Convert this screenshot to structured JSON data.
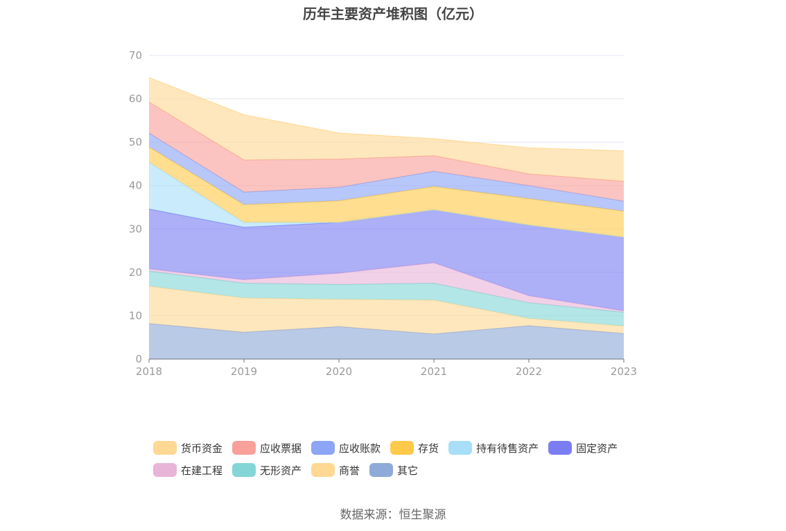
{
  "title": "历年主要资产堆积图（亿元）",
  "source": "数据来源：恒生聚源",
  "chart_data": {
    "type": "area",
    "stacked": true,
    "title": "历年主要资产堆积图（亿元）",
    "x": [
      "2018",
      "2019",
      "2020",
      "2021",
      "2022",
      "2023"
    ],
    "ylim": [
      0,
      70
    ],
    "yticks": [
      0,
      10,
      20,
      30,
      40,
      50,
      60,
      70
    ],
    "grid": true,
    "legend_position": "bottom",
    "series": [
      {
        "name": "其它",
        "color": "#8eaad8",
        "values": [
          8.2,
          6.2,
          7.5,
          5.8,
          7.7,
          5.9
        ]
      },
      {
        "name": "商誉",
        "color": "#ffd894",
        "values": [
          8.6,
          7.9,
          6.3,
          7.8,
          1.7,
          1.7
        ]
      },
      {
        "name": "无形资产",
        "color": "#84d6d6",
        "values": [
          3.5,
          3.4,
          3.4,
          3.9,
          3.6,
          3.2
        ]
      },
      {
        "name": "在建工程",
        "color": "#e8b4d8",
        "values": [
          0.5,
          0.8,
          2.6,
          4.7,
          1.6,
          0.3
        ]
      },
      {
        "name": "固定资产",
        "color": "#7b7ef2",
        "values": [
          13.8,
          12.1,
          11.7,
          12.2,
          16.3,
          17.0
        ]
      },
      {
        "name": "持有待售资产",
        "color": "#a8def8",
        "values": [
          10.8,
          1.1,
          0.0,
          0.0,
          0.0,
          0.0
        ]
      },
      {
        "name": "存货",
        "color": "#ffc94a",
        "values": [
          3.5,
          4.1,
          5.0,
          5.4,
          6.1,
          6.0
        ]
      },
      {
        "name": "应收账款",
        "color": "#8ca5f5",
        "values": [
          3.2,
          2.9,
          3.1,
          3.5,
          3.0,
          2.3
        ]
      },
      {
        "name": "应收票据",
        "color": "#f9a09a",
        "values": [
          7.2,
          7.4,
          6.5,
          3.6,
          2.7,
          4.6
        ]
      },
      {
        "name": "货币资金",
        "color": "#ffd894",
        "values": [
          5.6,
          10.4,
          6.0,
          3.9,
          6.0,
          7.0
        ]
      }
    ]
  },
  "legend": [
    {
      "label": "货币资金",
      "color": "#ffd894"
    },
    {
      "label": "应收票据",
      "color": "#f9a09a"
    },
    {
      "label": "应收账款",
      "color": "#8ca5f5"
    },
    {
      "label": "存货",
      "color": "#ffc94a"
    },
    {
      "label": "持有待售资产",
      "color": "#a8def8"
    },
    {
      "label": "固定资产",
      "color": "#7b7ef2"
    },
    {
      "label": "在建工程",
      "color": "#e8b4d8"
    },
    {
      "label": "无形资产",
      "color": "#84d6d6"
    },
    {
      "label": "商誉",
      "color": "#ffd894"
    },
    {
      "label": "其它",
      "color": "#8eaad8"
    }
  ]
}
